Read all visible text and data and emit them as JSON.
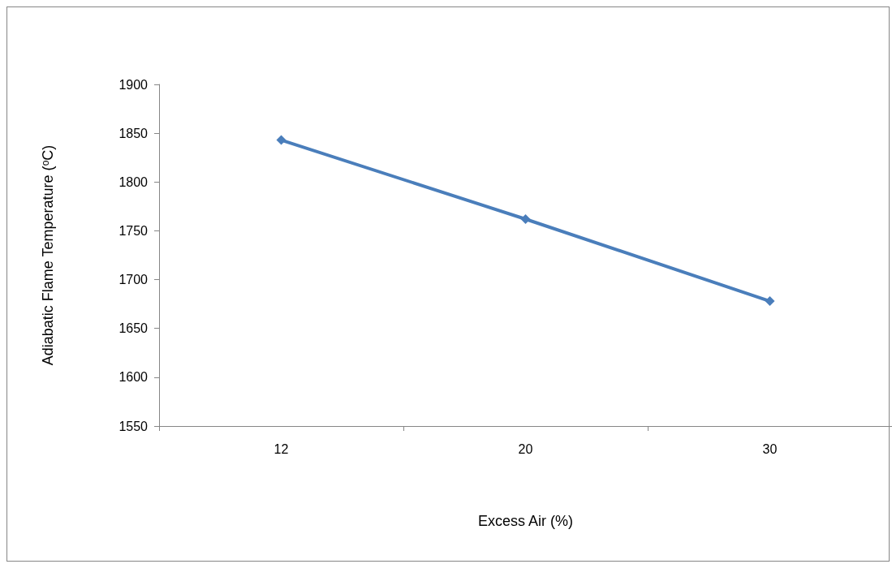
{
  "chart_data": {
    "type": "line",
    "xlabel": "Excess Air (%)",
    "ylabel": "Adiabatic Flame Temperature ($^{o}$C)",
    "categories": [
      "12",
      "20",
      "30"
    ],
    "series": [
      {
        "color": "#4a7ebb",
        "values": [
          1843,
          1762,
          1678
        ]
      }
    ],
    "ylim": [
      1550,
      1900
    ],
    "yticks": [
      1550,
      1600,
      1650,
      1700,
      1750,
      1800,
      1850,
      1900
    ],
    "grid": false,
    "marker": "diamond",
    "line_style": "solid"
  }
}
